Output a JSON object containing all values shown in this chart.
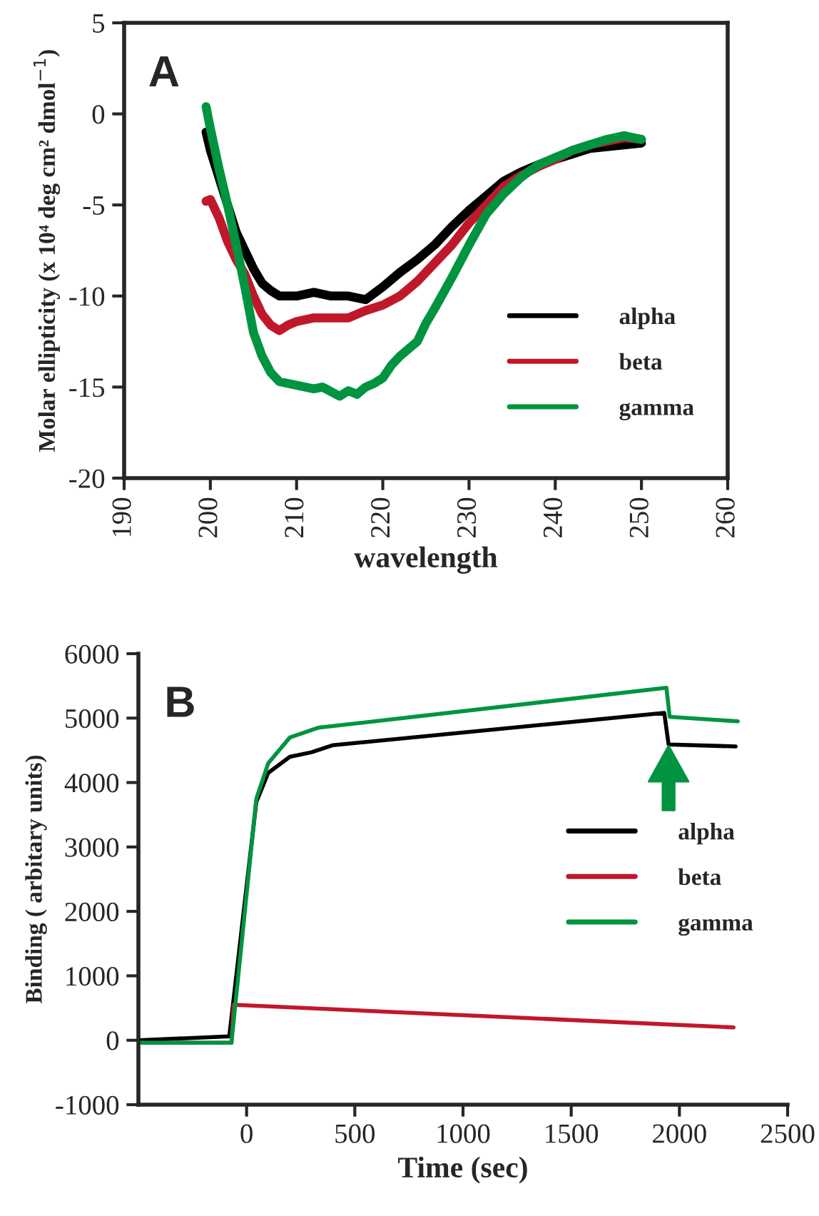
{
  "chart_data": [
    {
      "type": "line",
      "annotations": [
        "A"
      ],
      "xlabel": "wavelength",
      "ylabel": "Molar ellipticity (x 10⁴ deg cm² dmol$^{−1}$)",
      "xlim": [
        190,
        260
      ],
      "xticks": [
        190,
        200,
        210,
        220,
        230,
        240,
        250,
        260
      ],
      "ylim": [
        -20,
        5
      ],
      "yticks": [
        -20,
        -15,
        -10,
        -5,
        0,
        5
      ],
      "grid": false,
      "legend": "bottom right",
      "series": [
        {
          "name": "alpha",
          "color": "#000000",
          "x": [
            199.5,
            200,
            201,
            202,
            203,
            204,
            205,
            206,
            207,
            208,
            210,
            212,
            214,
            216,
            218,
            220,
            222,
            224,
            226,
            228,
            230,
            232,
            234,
            236,
            238,
            240,
            242,
            244,
            246,
            248,
            250
          ],
          "values": [
            -1,
            -2,
            -3.5,
            -5,
            -6.5,
            -7.5,
            -8.5,
            -9.3,
            -9.7,
            -10,
            -10,
            -9.8,
            -10,
            -10,
            -10.2,
            -9.5,
            -8.7,
            -8,
            -7.2,
            -6.2,
            -5.3,
            -4.5,
            -3.7,
            -3.2,
            -2.8,
            -2.5,
            -2.2,
            -1.9,
            -1.8,
            -1.7,
            -1.6
          ]
        },
        {
          "name": "beta",
          "color": "#c0182a",
          "x": [
            199.5,
            200,
            201,
            202,
            203,
            204,
            205,
            206,
            207,
            208,
            209,
            210,
            212,
            214,
            216,
            218,
            220,
            222,
            224,
            226,
            228,
            230,
            232,
            234,
            236,
            238,
            240,
            242,
            244,
            246,
            248,
            250
          ],
          "values": [
            -4.8,
            -4.7,
            -5.7,
            -7,
            -8,
            -8.8,
            -10,
            -11,
            -11.6,
            -11.9,
            -11.6,
            -11.4,
            -11.2,
            -11.2,
            -11.2,
            -10.8,
            -10.5,
            -10,
            -9.2,
            -8.2,
            -7.2,
            -6,
            -5,
            -4,
            -3.4,
            -2.9,
            -2.5,
            -2,
            -1.7,
            -1.5,
            -1.3,
            -1.4
          ]
        },
        {
          "name": "gamma",
          "color": "#009440",
          "x": [
            199.5,
            200,
            201,
            202,
            203,
            204,
            205,
            206,
            207,
            208,
            210,
            212,
            213,
            215,
            216,
            217,
            218,
            219,
            220,
            221,
            222,
            224,
            225,
            226,
            228,
            230,
            232,
            234,
            236,
            238,
            240,
            242,
            244,
            246,
            248,
            250
          ],
          "values": [
            0.4,
            -0.8,
            -3,
            -5,
            -7.2,
            -9.5,
            -12,
            -13.3,
            -14.2,
            -14.7,
            -14.9,
            -15.1,
            -15,
            -15.5,
            -15.2,
            -15.4,
            -15,
            -14.8,
            -14.5,
            -13.8,
            -13.3,
            -12.5,
            -11.5,
            -10.7,
            -9,
            -7.2,
            -5.5,
            -4.4,
            -3.5,
            -2.8,
            -2.4,
            -2,
            -1.7,
            -1.4,
            -1.2,
            -1.4
          ]
        }
      ]
    },
    {
      "type": "line",
      "annotations": [
        "B"
      ],
      "xlabel": "Time (sec)",
      "ylabel": "Binding ( arbitary units)",
      "xlim": [
        -500,
        2500
      ],
      "xticks": [
        0,
        500,
        1000,
        1500,
        2000,
        2500
      ],
      "ylim": [
        -1000,
        6000
      ],
      "yticks": [
        -1000,
        0,
        1000,
        2000,
        3000,
        4000,
        5000,
        6000
      ],
      "grid": false,
      "legend": "right",
      "series": [
        {
          "name": "alpha",
          "color": "#000000",
          "x": [
            -500,
            -80,
            45,
            100,
            200,
            300,
            400,
            1930,
            1950,
            2260
          ],
          "values": [
            0,
            60,
            3700,
            4150,
            4400,
            4470,
            4580,
            5080,
            4590,
            4560
          ]
        },
        {
          "name": "beta",
          "color": "#c0182a",
          "x": [
            -500,
            -70,
            -60,
            2250
          ],
          "values": [
            -40,
            -40,
            550,
            200
          ]
        },
        {
          "name": "gamma",
          "color": "#009440",
          "x": [
            -500,
            -70,
            45,
            100,
            200,
            330,
            1940,
            1955,
            2270
          ],
          "values": [
            -40,
            -40,
            3750,
            4300,
            4700,
            4850,
            5470,
            5020,
            4950
          ]
        }
      ]
    }
  ]
}
